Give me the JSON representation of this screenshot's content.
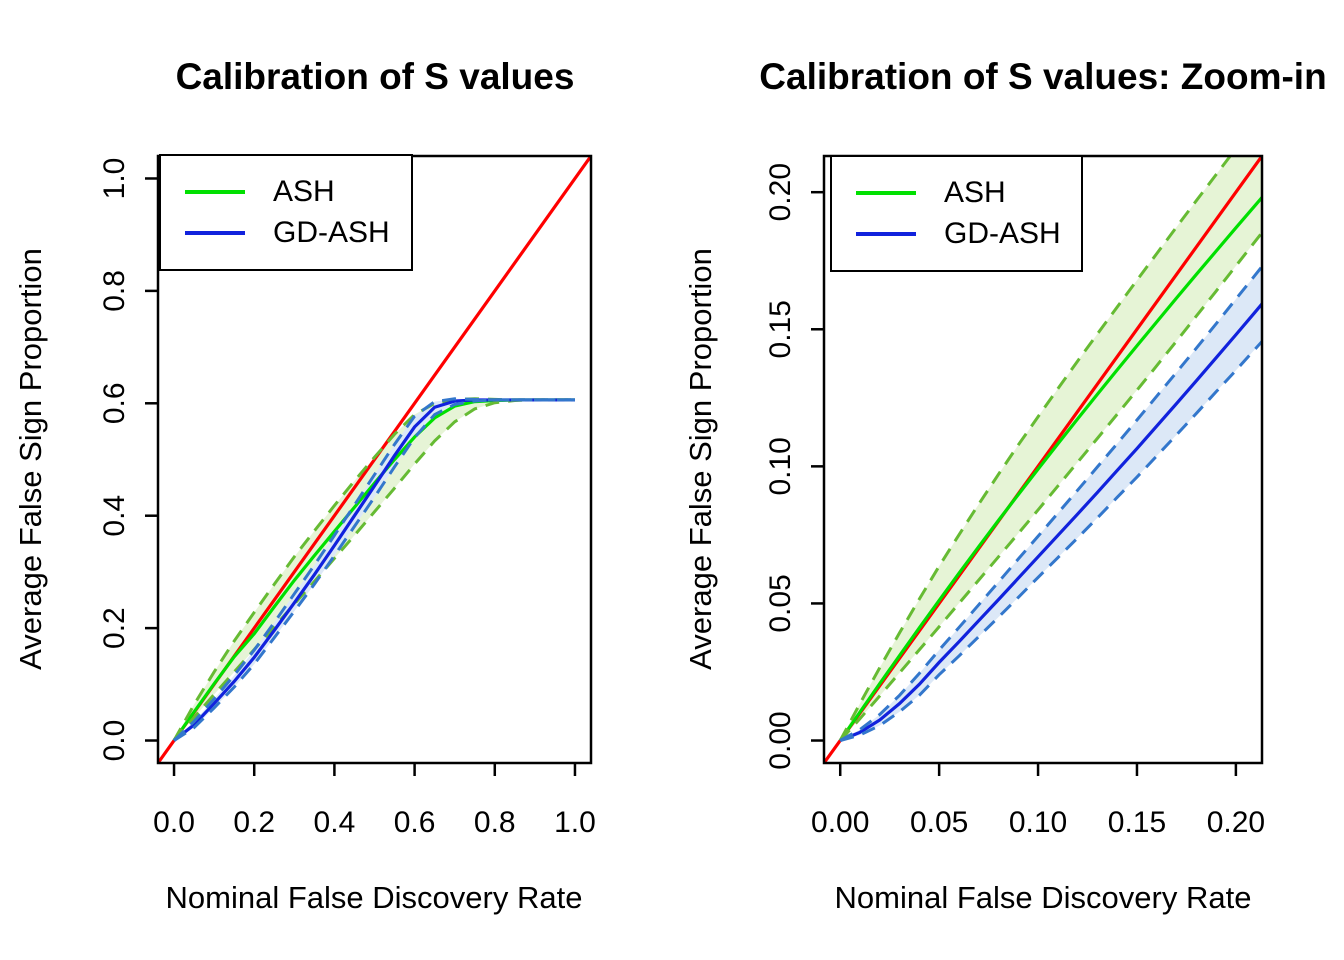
{
  "figure": {
    "background": "#ffffff",
    "text_color": "#000000"
  },
  "chart_data": [
    {
      "type": "line",
      "title": "Calibration of S values",
      "xlabel": "Nominal False Discovery Rate",
      "ylabel": "Average False Sign Proportion",
      "xlim": [
        0,
        1
      ],
      "ylim": [
        0,
        1
      ],
      "grid": false,
      "legend_position": "topleft",
      "plateau_y": 0.606,
      "xticks": {
        "values": [
          0,
          0.2,
          0.4,
          0.6,
          0.8,
          1.0
        ],
        "labels": [
          "0.0",
          "0.2",
          "0.4",
          "0.6",
          "0.8",
          "1.0"
        ]
      },
      "yticks": {
        "values": [
          0,
          0.2,
          0.4,
          0.6,
          0.8,
          1.0
        ],
        "labels": [
          "0.0",
          "0.2",
          "0.4",
          "0.6",
          "0.8",
          "1.0"
        ]
      },
      "legend": [
        {
          "label": "ASH",
          "color": "#00E000"
        },
        {
          "label": "GD-ASH",
          "color": "#1122DD"
        }
      ],
      "reference": {
        "description": "identity line y = x",
        "color": "#FF0000"
      },
      "x": [
        0,
        0.05,
        0.1,
        0.15,
        0.2,
        0.25,
        0.3,
        0.35,
        0.4,
        0.45,
        0.5,
        0.55,
        0.6,
        0.65,
        0.7,
        0.75,
        0.8,
        0.85,
        0.9,
        0.95,
        1.0
      ],
      "series": [
        {
          "id": "ash_mean",
          "name": "ASH mean",
          "style": "solid",
          "color": "#00E000",
          "y": [
            0,
            0.051,
            0.101,
            0.149,
            0.19,
            0.238,
            0.285,
            0.329,
            0.372,
            0.415,
            0.458,
            0.5,
            0.54,
            0.574,
            0.595,
            0.603,
            0.605,
            0.606,
            0.606,
            0.606,
            0.606
          ]
        },
        {
          "id": "ash_upper",
          "name": "ASH upper CI",
          "style": "dashed",
          "color": "#66BB33",
          "y": [
            0,
            0.064,
            0.122,
            0.177,
            0.228,
            0.278,
            0.327,
            0.373,
            0.418,
            0.462,
            0.504,
            0.545,
            0.58,
            0.6,
            0.607,
            0.608,
            0.607,
            0.606,
            0.606,
            0.606,
            0.606
          ]
        },
        {
          "id": "ash_lower",
          "name": "ASH lower CI",
          "style": "dashed",
          "color": "#66BB33",
          "y": [
            0,
            0.041,
            0.082,
            0.122,
            0.162,
            0.202,
            0.243,
            0.283,
            0.324,
            0.365,
            0.407,
            0.449,
            0.492,
            0.533,
            0.567,
            0.59,
            0.601,
            0.605,
            0.606,
            0.606,
            0.606
          ]
        },
        {
          "id": "gd_mean",
          "name": "GD-ASH mean",
          "style": "solid",
          "color": "#1122DD",
          "y": [
            0,
            0.028,
            0.066,
            0.105,
            0.148,
            0.196,
            0.245,
            0.295,
            0.347,
            0.4,
            0.453,
            0.507,
            0.558,
            0.593,
            0.604,
            0.606,
            0.606,
            0.606,
            0.606,
            0.606,
            0.606
          ]
        },
        {
          "id": "gd_upper",
          "name": "GD-ASH upper CI",
          "style": "dashed",
          "color": "#3377CC",
          "y": [
            0,
            0.034,
            0.074,
            0.116,
            0.161,
            0.21,
            0.261,
            0.312,
            0.365,
            0.419,
            0.473,
            0.527,
            0.577,
            0.603,
            0.608,
            0.607,
            0.606,
            0.606,
            0.606,
            0.606,
            0.606
          ]
        },
        {
          "id": "gd_lower",
          "name": "GD-ASH lower CI",
          "style": "dashed",
          "color": "#3377CC",
          "y": [
            0,
            0.023,
            0.058,
            0.095,
            0.136,
            0.183,
            0.23,
            0.278,
            0.329,
            0.381,
            0.433,
            0.487,
            0.539,
            0.58,
            0.598,
            0.604,
            0.606,
            0.606,
            0.606,
            0.606,
            0.606
          ]
        }
      ],
      "bands": [
        {
          "name": "ASH 95% band",
          "upper": "ash_upper",
          "lower": "ash_lower",
          "fill": "#E6F4D6"
        },
        {
          "name": "GD-ASH 95% band",
          "upper": "gd_upper",
          "lower": "gd_lower",
          "fill": "#DCE8F7"
        }
      ]
    },
    {
      "type": "line",
      "title": "Calibration of S values: Zoom-in",
      "xlabel": "Nominal False Discovery Rate",
      "ylabel": "Average False Sign Proportion",
      "xlim": [
        0,
        0.205
      ],
      "ylim": [
        0,
        0.205
      ],
      "grid": false,
      "legend_position": "topleft",
      "xticks": {
        "values": [
          0,
          0.05,
          0.1,
          0.15,
          0.2
        ],
        "labels": [
          "0.00",
          "0.05",
          "0.10",
          "0.15",
          "0.20"
        ]
      },
      "yticks": {
        "values": [
          0,
          0.05,
          0.1,
          0.15,
          0.2
        ],
        "labels": [
          "0.00",
          "0.05",
          "0.10",
          "0.15",
          "0.20"
        ]
      },
      "legend": [
        {
          "label": "ASH",
          "color": "#00E000"
        },
        {
          "label": "GD-ASH",
          "color": "#1122DD"
        }
      ],
      "reference": {
        "description": "identity line y = x",
        "color": "#FF0000"
      },
      "x": [
        0,
        0.01,
        0.02,
        0.03,
        0.04,
        0.05,
        0.06,
        0.07,
        0.08,
        0.09,
        0.1,
        0.11,
        0.12,
        0.13,
        0.14,
        0.15,
        0.16,
        0.17,
        0.18,
        0.19,
        0.2,
        0.21,
        0.215
      ],
      "series": [
        {
          "id": "ash_mean",
          "name": "ASH mean",
          "style": "solid",
          "color": "#00E000",
          "y": [
            0,
            0.0104,
            0.0208,
            0.031,
            0.0411,
            0.0511,
            0.061,
            0.0707,
            0.0803,
            0.0897,
            0.099,
            0.1082,
            0.1173,
            0.1263,
            0.1352,
            0.144,
            0.1527,
            0.1614,
            0.17,
            0.1785,
            0.187,
            0.1954,
            0.1996
          ]
        },
        {
          "id": "ash_upper",
          "name": "ASH upper CI",
          "style": "dashed",
          "color": "#66BB33",
          "y": [
            0,
            0.0135,
            0.0266,
            0.0393,
            0.0516,
            0.0636,
            0.075,
            0.0862,
            0.0971,
            0.1078,
            0.1181,
            0.1283,
            0.1384,
            0.1483,
            0.1581,
            0.1679,
            0.1776,
            0.1873,
            0.1969,
            0.2064,
            0.2159,
            0.2254,
            0.2301
          ]
        },
        {
          "id": "ash_lower",
          "name": "ASH lower CI",
          "style": "dashed",
          "color": "#66BB33",
          "y": [
            0,
            0.008,
            0.0163,
            0.0247,
            0.0331,
            0.0415,
            0.05,
            0.0585,
            0.067,
            0.0755,
            0.0841,
            0.0928,
            0.1015,
            0.1102,
            0.119,
            0.1278,
            0.1367,
            0.1457,
            0.1548,
            0.1639,
            0.1731,
            0.1823,
            0.1869
          ]
        },
        {
          "id": "gd_mean",
          "name": "GD-ASH mean",
          "style": "solid",
          "color": "#1122DD",
          "y": [
            0,
            0.003,
            0.0075,
            0.0135,
            0.0205,
            0.0285,
            0.036,
            0.0437,
            0.0514,
            0.0592,
            0.067,
            0.0748,
            0.0826,
            0.0905,
            0.0985,
            0.1065,
            0.1147,
            0.1229,
            0.1312,
            0.1396,
            0.148,
            0.1565,
            0.1608
          ]
        },
        {
          "id": "gd_upper",
          "name": "GD-ASH upper CI",
          "style": "dashed",
          "color": "#3377CC",
          "y": [
            0,
            0.004,
            0.0095,
            0.0165,
            0.0245,
            0.033,
            0.0412,
            0.0495,
            0.0578,
            0.0662,
            0.0745,
            0.0829,
            0.0913,
            0.0998,
            0.1083,
            0.1169,
            0.1256,
            0.1343,
            0.1431,
            0.152,
            0.161,
            0.17,
            0.1745
          ]
        },
        {
          "id": "gd_lower",
          "name": "GD-ASH lower CI",
          "style": "dashed",
          "color": "#3377CC",
          "y": [
            0,
            0.002,
            0.0055,
            0.0105,
            0.0165,
            0.024,
            0.0308,
            0.0379,
            0.045,
            0.0522,
            0.0595,
            0.0667,
            0.0739,
            0.0812,
            0.0887,
            0.0961,
            0.1038,
            0.1115,
            0.1193,
            0.1272,
            0.135,
            0.143,
            0.147
          ]
        }
      ],
      "bands": [
        {
          "name": "ASH 95% band",
          "upper": "ash_upper",
          "lower": "ash_lower",
          "fill": "#E6F4D6"
        },
        {
          "name": "GD-ASH 95% band",
          "upper": "gd_upper",
          "lower": "gd_lower",
          "fill": "#DCE8F7"
        }
      ]
    }
  ]
}
